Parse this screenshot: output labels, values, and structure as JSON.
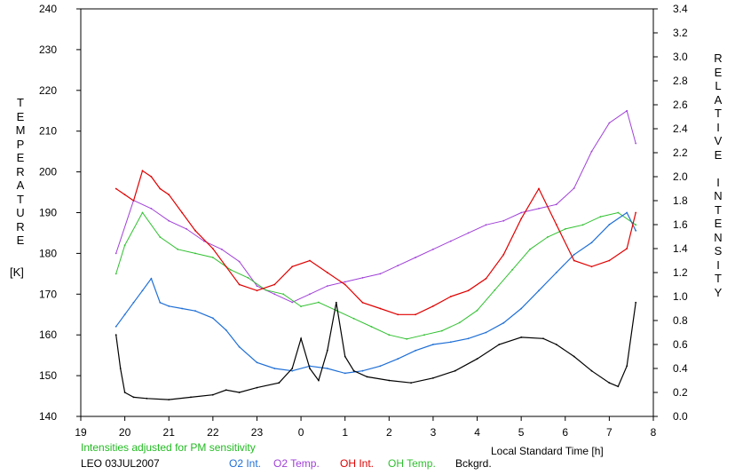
{
  "chart_data": {
    "type": "line",
    "left_axis": {
      "label": "TEMPERATURE",
      "unit": "[K]",
      "ylim": [
        140,
        240
      ],
      "ticks": [
        140,
        150,
        160,
        170,
        180,
        190,
        200,
        210,
        220,
        230,
        240
      ]
    },
    "right_axis": {
      "label": "RELATIVE INTENSITY",
      "ylim": [
        0.0,
        3.4
      ],
      "ticks": [
        "0.0",
        "0.2",
        "0.4",
        "0.6",
        "0.8",
        "1.0",
        "1.2",
        "1.4",
        "1.6",
        "1.8",
        "2.0",
        "2.2",
        "2.4",
        "2.6",
        "2.8",
        "3.0",
        "3.2",
        "3.4"
      ]
    },
    "x_axis": {
      "label": "Local Standard Time [h]",
      "range_hours": [
        19,
        32
      ],
      "tick_labels": [
        "19",
        "20",
        "21",
        "22",
        "23",
        "0",
        "1",
        "2",
        "3",
        "4",
        "5",
        "6",
        "7",
        "8"
      ]
    },
    "note": "Intensities adjusted for PM sensitivity",
    "station": "LEO 03JUL2007",
    "grid": false,
    "series": [
      {
        "name": "O2 Int.",
        "axis": "right",
        "color": "#1f6fd6",
        "x": [
          19.8,
          20.0,
          20.2,
          20.4,
          20.6,
          20.8,
          21.0,
          21.3,
          21.6,
          22.0,
          22.3,
          22.6,
          23.0,
          23.4,
          23.8,
          24.2,
          24.6,
          25.0,
          25.4,
          25.8,
          26.2,
          26.6,
          27.0,
          27.4,
          27.8,
          28.2,
          28.6,
          29.0,
          29.4,
          29.8,
          30.2,
          30.6,
          31.0,
          31.4,
          31.6
        ],
        "y": [
          0.75,
          0.85,
          0.95,
          1.05,
          1.15,
          0.95,
          0.92,
          0.9,
          0.88,
          0.82,
          0.72,
          0.58,
          0.45,
          0.4,
          0.38,
          0.42,
          0.4,
          0.36,
          0.38,
          0.42,
          0.48,
          0.55,
          0.6,
          0.62,
          0.65,
          0.7,
          0.78,
          0.9,
          1.05,
          1.2,
          1.35,
          1.45,
          1.6,
          1.7,
          1.55
        ]
      },
      {
        "name": "O2 Temp.",
        "axis": "left",
        "color": "#a040d8",
        "x": [
          19.8,
          20.2,
          20.6,
          21.0,
          21.4,
          21.8,
          22.2,
          22.6,
          23.0,
          23.4,
          23.8,
          24.2,
          24.6,
          25.0,
          25.4,
          25.8,
          26.2,
          26.6,
          27.0,
          27.4,
          27.8,
          28.2,
          28.6,
          29.0,
          29.4,
          29.8,
          30.2,
          30.6,
          31.0,
          31.4,
          31.6
        ],
        "y": [
          180,
          193,
          191,
          188,
          186,
          183,
          181,
          178,
          172,
          170,
          168,
          170,
          172,
          173,
          174,
          175,
          177,
          179,
          181,
          183,
          185,
          187,
          188,
          190,
          191,
          192,
          196,
          205,
          212,
          215,
          207
        ]
      },
      {
        "name": "OH Int.",
        "axis": "right",
        "color": "#e00000",
        "x": [
          19.8,
          20.0,
          20.2,
          20.4,
          20.6,
          20.8,
          21.0,
          21.3,
          21.6,
          22.0,
          22.3,
          22.6,
          23.0,
          23.4,
          23.8,
          24.2,
          24.6,
          25.0,
          25.4,
          25.8,
          26.2,
          26.6,
          27.0,
          27.4,
          27.8,
          28.2,
          28.6,
          29.0,
          29.4,
          29.8,
          30.2,
          30.6,
          31.0,
          31.4,
          31.6
        ],
        "y": [
          1.9,
          1.85,
          1.8,
          2.05,
          2.0,
          1.9,
          1.85,
          1.7,
          1.55,
          1.4,
          1.25,
          1.1,
          1.05,
          1.1,
          1.25,
          1.3,
          1.2,
          1.1,
          0.95,
          0.9,
          0.85,
          0.85,
          0.92,
          1.0,
          1.05,
          1.15,
          1.35,
          1.65,
          1.9,
          1.6,
          1.3,
          1.25,
          1.3,
          1.4,
          1.7
        ]
      },
      {
        "name": "OH Temp.",
        "axis": "left",
        "color": "#30c030",
        "x": [
          19.8,
          20.0,
          20.4,
          20.8,
          21.2,
          21.6,
          22.0,
          22.4,
          22.8,
          23.2,
          23.6,
          24.0,
          24.4,
          24.8,
          25.2,
          25.6,
          26.0,
          26.4,
          26.8,
          27.2,
          27.6,
          28.0,
          28.4,
          28.8,
          29.2,
          29.6,
          30.0,
          30.4,
          30.8,
          31.2,
          31.6
        ],
        "y": [
          175,
          182,
          190,
          184,
          181,
          180,
          179,
          176,
          174,
          171,
          170,
          167,
          168,
          166,
          164,
          162,
          160,
          159,
          160,
          161,
          163,
          166,
          171,
          176,
          181,
          184,
          186,
          187,
          189,
          190,
          187
        ]
      },
      {
        "name": "Bckgrd.",
        "axis": "right",
        "color": "#000000",
        "x": [
          19.8,
          19.9,
          20.0,
          20.2,
          20.5,
          21.0,
          21.5,
          22.0,
          22.3,
          22.6,
          23.0,
          23.5,
          23.8,
          24.0,
          24.2,
          24.4,
          24.6,
          24.8,
          25.0,
          25.2,
          25.5,
          26.0,
          26.5,
          27.0,
          27.5,
          28.0,
          28.5,
          29.0,
          29.5,
          29.8,
          30.2,
          30.6,
          31.0,
          31.2,
          31.4,
          31.6
        ],
        "y": [
          0.68,
          0.4,
          0.2,
          0.16,
          0.15,
          0.14,
          0.16,
          0.18,
          0.22,
          0.2,
          0.24,
          0.28,
          0.4,
          0.65,
          0.4,
          0.3,
          0.55,
          0.95,
          0.5,
          0.38,
          0.33,
          0.3,
          0.28,
          0.32,
          0.38,
          0.48,
          0.6,
          0.66,
          0.65,
          0.6,
          0.5,
          0.38,
          0.28,
          0.25,
          0.42,
          0.95
        ]
      }
    ]
  },
  "legend": [
    {
      "label": "O2 Int.",
      "color": "#1f6fd6"
    },
    {
      "label": "O2 Temp.",
      "color": "#a040d8"
    },
    {
      "label": "OH Int.",
      "color": "#e00000"
    },
    {
      "label": "OH Temp.",
      "color": "#30c030"
    },
    {
      "label": "Bckgrd.",
      "color": "#000000"
    }
  ]
}
